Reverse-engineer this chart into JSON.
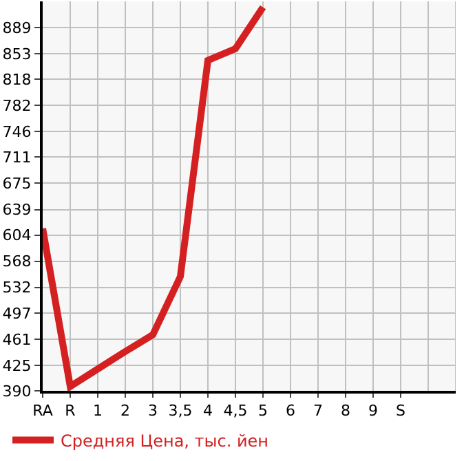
{
  "chart_data": {
    "type": "line",
    "categories": [
      "RA",
      "R",
      "1",
      "2",
      "3",
      "3,5",
      "4",
      "4,5",
      "5",
      "6",
      "7",
      "8",
      "9",
      "S",
      null
    ],
    "series": [
      {
        "name": "Средняя Цена, тыс. йен",
        "color": "#d42020",
        "values": [
          613,
          396,
          420,
          444,
          467,
          547,
          844,
          860,
          917,
          null,
          null,
          null,
          null,
          null,
          null
        ]
      }
    ],
    "ylim": [
      390,
      925
    ],
    "yticks": [
      390,
      425,
      461,
      497,
      532,
      568,
      604,
      639,
      675,
      711,
      746,
      782,
      818,
      853,
      889
    ],
    "grid": true,
    "legend": "bottom",
    "marker": "none",
    "line_style": "solid"
  }
}
